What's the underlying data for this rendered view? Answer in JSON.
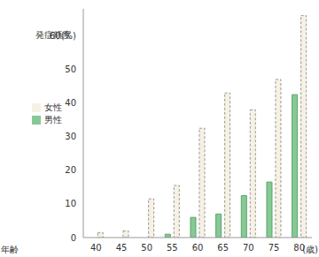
{
  "chart_data": {
    "type": "bar",
    "y_label": "発症頻度",
    "x_label": "年齢",
    "x_unit": "(歳)",
    "categories": [
      "40",
      "45",
      "50",
      "55",
      "60",
      "65",
      "70",
      "75",
      "80"
    ],
    "series": [
      {
        "name": "男性",
        "color": "#86c994",
        "values": [
          0,
          0,
          0,
          1,
          6,
          7,
          12.5,
          16.5,
          42.5
        ]
      },
      {
        "name": "女性",
        "color": "#f6f1e2",
        "values": [
          1.5,
          2,
          11.5,
          15.5,
          32.5,
          43,
          38,
          47,
          66
        ]
      }
    ],
    "ylim": [
      0,
      68
    ],
    "yticks": [
      0,
      10,
      20,
      30,
      40,
      50,
      {
        "value": 60,
        "label": "60(%)"
      }
    ],
    "legend": "left"
  }
}
